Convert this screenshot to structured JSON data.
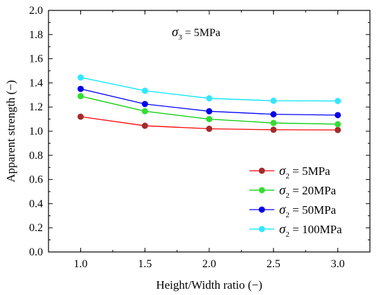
{
  "chart_data": {
    "type": "line",
    "annotation": {
      "symbol": "σ",
      "subscript": "3",
      "text": " = 5MPa"
    },
    "xlabel": "Height/Width ratio (−)",
    "ylabel": "Apparent strength (−)",
    "xlim": [
      0.75,
      3.25
    ],
    "ylim": [
      0.0,
      2.0
    ],
    "xticks": [
      "1.0",
      "1.5",
      "2.0",
      "2.5",
      "3.0"
    ],
    "yticks": [
      "0.0",
      "0.2",
      "0.4",
      "0.6",
      "0.8",
      "1.0",
      "1.2",
      "1.4",
      "1.6",
      "1.8",
      "2.0"
    ],
    "x": [
      1.0,
      1.5,
      2.0,
      2.5,
      3.0
    ],
    "series": [
      {
        "name_symbol": "σ",
        "name_subscript": "2",
        "name_text": " = 5MPa",
        "line_color": "#ff0000",
        "marker_color": "#a52a2a",
        "values": [
          1.12,
          1.045,
          1.02,
          1.012,
          1.01
        ]
      },
      {
        "name_symbol": "σ",
        "name_subscript": "2",
        "name_text": " = 20MPa",
        "line_color": "#00cc00",
        "marker_color": "#33dd33",
        "values": [
          1.29,
          1.165,
          1.1,
          1.068,
          1.058
        ]
      },
      {
        "name_symbol": "σ",
        "name_subscript": "2",
        "name_text": " = 50MPa",
        "line_color": "#0000ff",
        "marker_color": "#0000ee",
        "values": [
          1.35,
          1.225,
          1.165,
          1.14,
          1.133
        ]
      },
      {
        "name_symbol": "σ",
        "name_subscript": "2",
        "name_text": " = 100MPa",
        "line_color": "#00e5ff",
        "marker_color": "#33e6ff",
        "values": [
          1.445,
          1.335,
          1.272,
          1.252,
          1.25
        ]
      }
    ],
    "grid": false,
    "legend_position": "bottom-right"
  }
}
